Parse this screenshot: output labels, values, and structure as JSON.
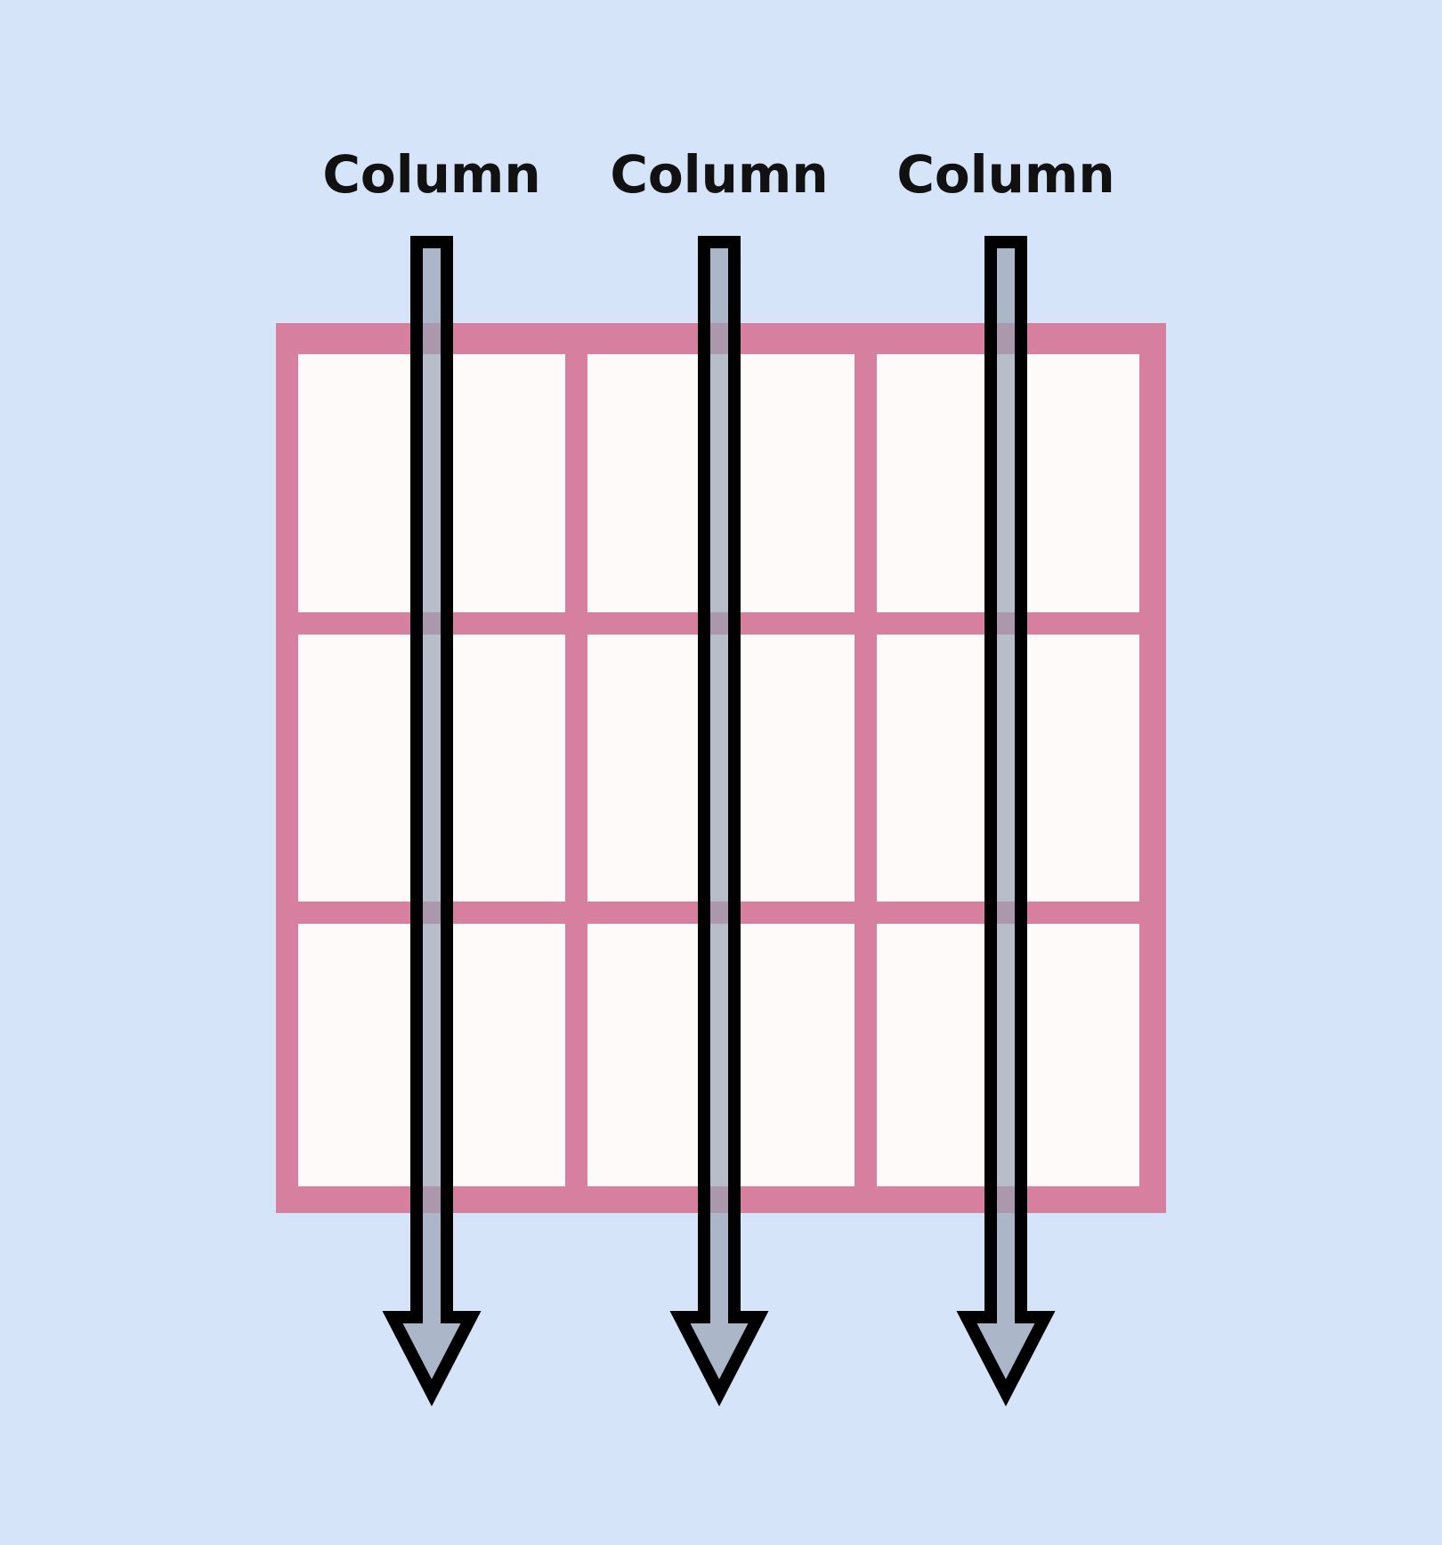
{
  "diagram": {
    "column_labels": [
      "Column",
      "Column",
      "Column"
    ],
    "rows": 3,
    "columns": 3
  },
  "colors": {
    "background": "#d6e4f9",
    "grid_line": "#d67f9f",
    "cell_fill": "#fffafa",
    "arrow_fill": "#99a3b3",
    "arrow_stroke": "#000000",
    "label_text": "#111111"
  }
}
